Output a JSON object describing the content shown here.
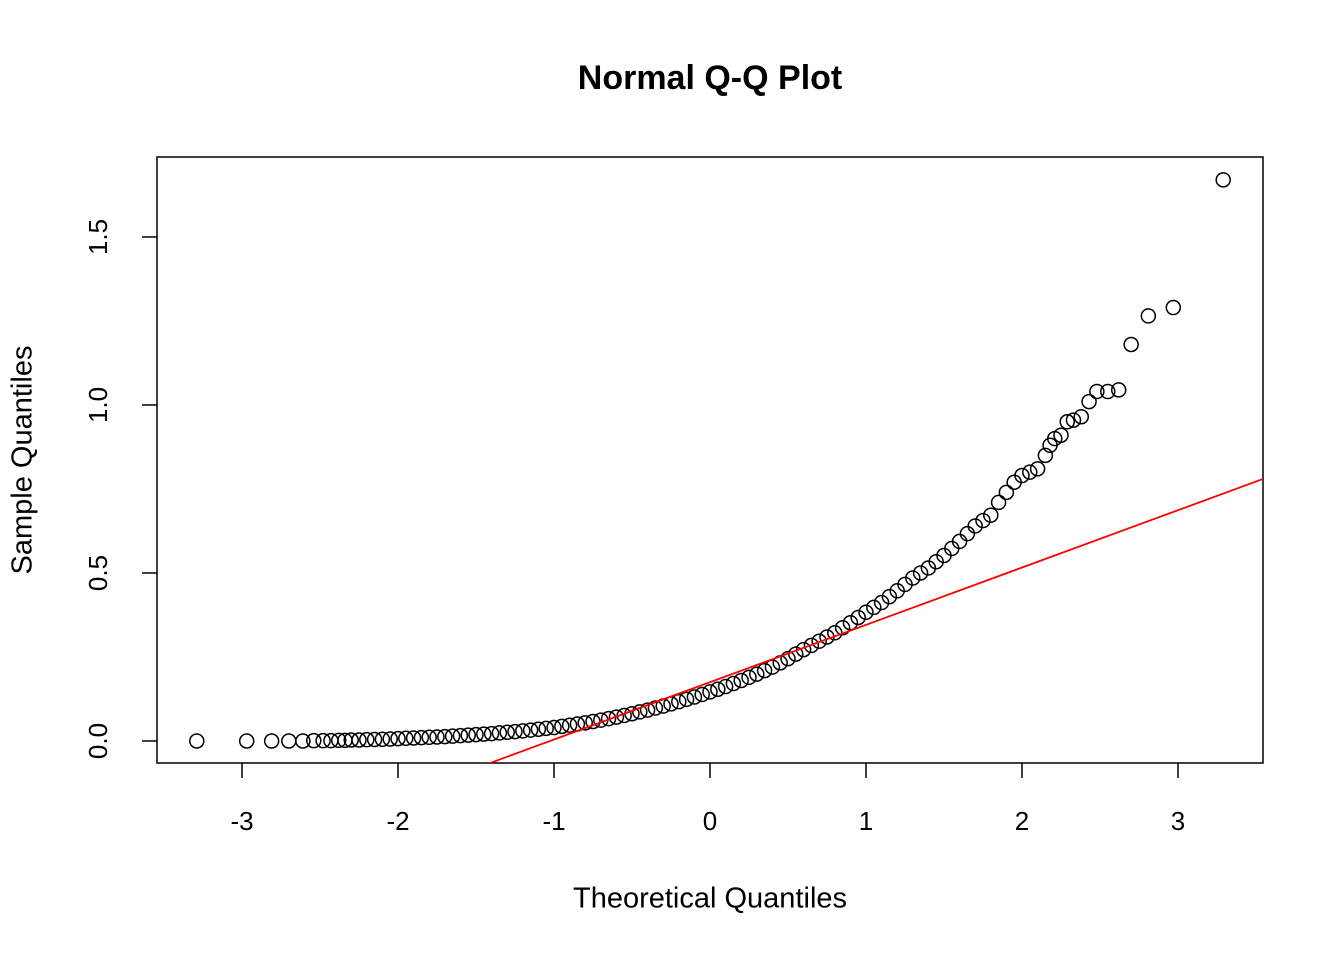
{
  "chart_data": {
    "type": "scatter",
    "title": "Normal Q-Q Plot",
    "x_label": "Theoretical Quantiles",
    "y_label": "Sample Quantiles",
    "marker_color": "#000000",
    "marker": "open-circle",
    "x": [
      -3.29,
      -2.97,
      -2.81,
      -2.7,
      -2.61,
      -2.54,
      -2.48,
      -2.43,
      -2.38,
      -2.34,
      -2.3,
      -2.25,
      -2.2,
      -2.15,
      -2.1,
      -2.05,
      -2.0,
      -1.95,
      -1.9,
      -1.85,
      -1.8,
      -1.75,
      -1.7,
      -1.65,
      -1.6,
      -1.55,
      -1.5,
      -1.45,
      -1.4,
      -1.35,
      -1.3,
      -1.25,
      -1.2,
      -1.15,
      -1.1,
      -1.05,
      -1.0,
      -0.95,
      -0.9,
      -0.85,
      -0.8,
      -0.75,
      -0.7,
      -0.65,
      -0.6,
      -0.55,
      -0.5,
      -0.45,
      -0.4,
      -0.35,
      -0.3,
      -0.25,
      -0.2,
      -0.15,
      -0.1,
      -0.05,
      0,
      0.05,
      0.1,
      0.15,
      0.2,
      0.25,
      0.3,
      0.35,
      0.4,
      0.45,
      0.5,
      0.55,
      0.6,
      0.65,
      0.7,
      0.75,
      0.8,
      0.85,
      0.9,
      0.95,
      1.0,
      1.05,
      1.1,
      1.15,
      1.2,
      1.25,
      1.3,
      1.35,
      1.4,
      1.45,
      1.5,
      1.55,
      1.6,
      1.65,
      1.7,
      1.75,
      1.8,
      1.85,
      1.9,
      1.95,
      2.0,
      2.05,
      2.1,
      2.15,
      2.18,
      2.21,
      2.25,
      2.29,
      2.33,
      2.38,
      2.43,
      2.48,
      2.55,
      2.62,
      2.7,
      2.81,
      2.97,
      3.29
    ],
    "values": [
      0,
      0,
      0,
      0,
      0,
      0.001,
      0.001,
      0.001,
      0.002,
      0.002,
      0.003,
      0.003,
      0.004,
      0.0045,
      0.005,
      0.006,
      0.007,
      0.008,
      0.009,
      0.01,
      0.011,
      0.012,
      0.013,
      0.0145,
      0.016,
      0.0175,
      0.019,
      0.0205,
      0.022,
      0.024,
      0.026,
      0.028,
      0.03,
      0.0325,
      0.035,
      0.0375,
      0.04,
      0.0435,
      0.047,
      0.0505,
      0.054,
      0.058,
      0.062,
      0.0665,
      0.071,
      0.076,
      0.081,
      0.0865,
      0.092,
      0.098,
      0.104,
      0.1105,
      0.117,
      0.124,
      0.131,
      0.1385,
      0.146,
      0.154,
      0.162,
      0.171,
      0.18,
      0.1895,
      0.199,
      0.2095,
      0.22,
      0.2325,
      0.245,
      0.2585,
      0.272,
      0.2845,
      0.297,
      0.3095,
      0.322,
      0.337,
      0.352,
      0.3675,
      0.383,
      0.3975,
      0.412,
      0.4295,
      0.447,
      0.466,
      0.485,
      0.5,
      0.515,
      0.5335,
      0.552,
      0.573,
      0.594,
      0.617,
      0.64,
      0.656,
      0.672,
      0.71,
      0.74,
      0.77,
      0.79,
      0.8,
      0.81,
      0.85,
      0.88,
      0.9,
      0.91,
      0.95,
      0.955,
      0.965,
      1.01,
      1.04,
      1.04,
      1.045,
      1.18,
      1.265,
      1.29,
      1.67
    ],
    "reference_line": {
      "intercept": 0.175,
      "slope": 0.1706,
      "color": "#ff0000"
    },
    "xlim": [
      -3.545,
      3.545
    ],
    "ylim": [
      -0.0655,
      1.738
    ],
    "xticks": [
      -3,
      -2,
      -1,
      0,
      1,
      2,
      3
    ],
    "yticks": [
      {
        "value": 0,
        "label": "0.0"
      },
      0.5,
      {
        "value": 1,
        "label": "1.0"
      },
      1.5
    ]
  }
}
